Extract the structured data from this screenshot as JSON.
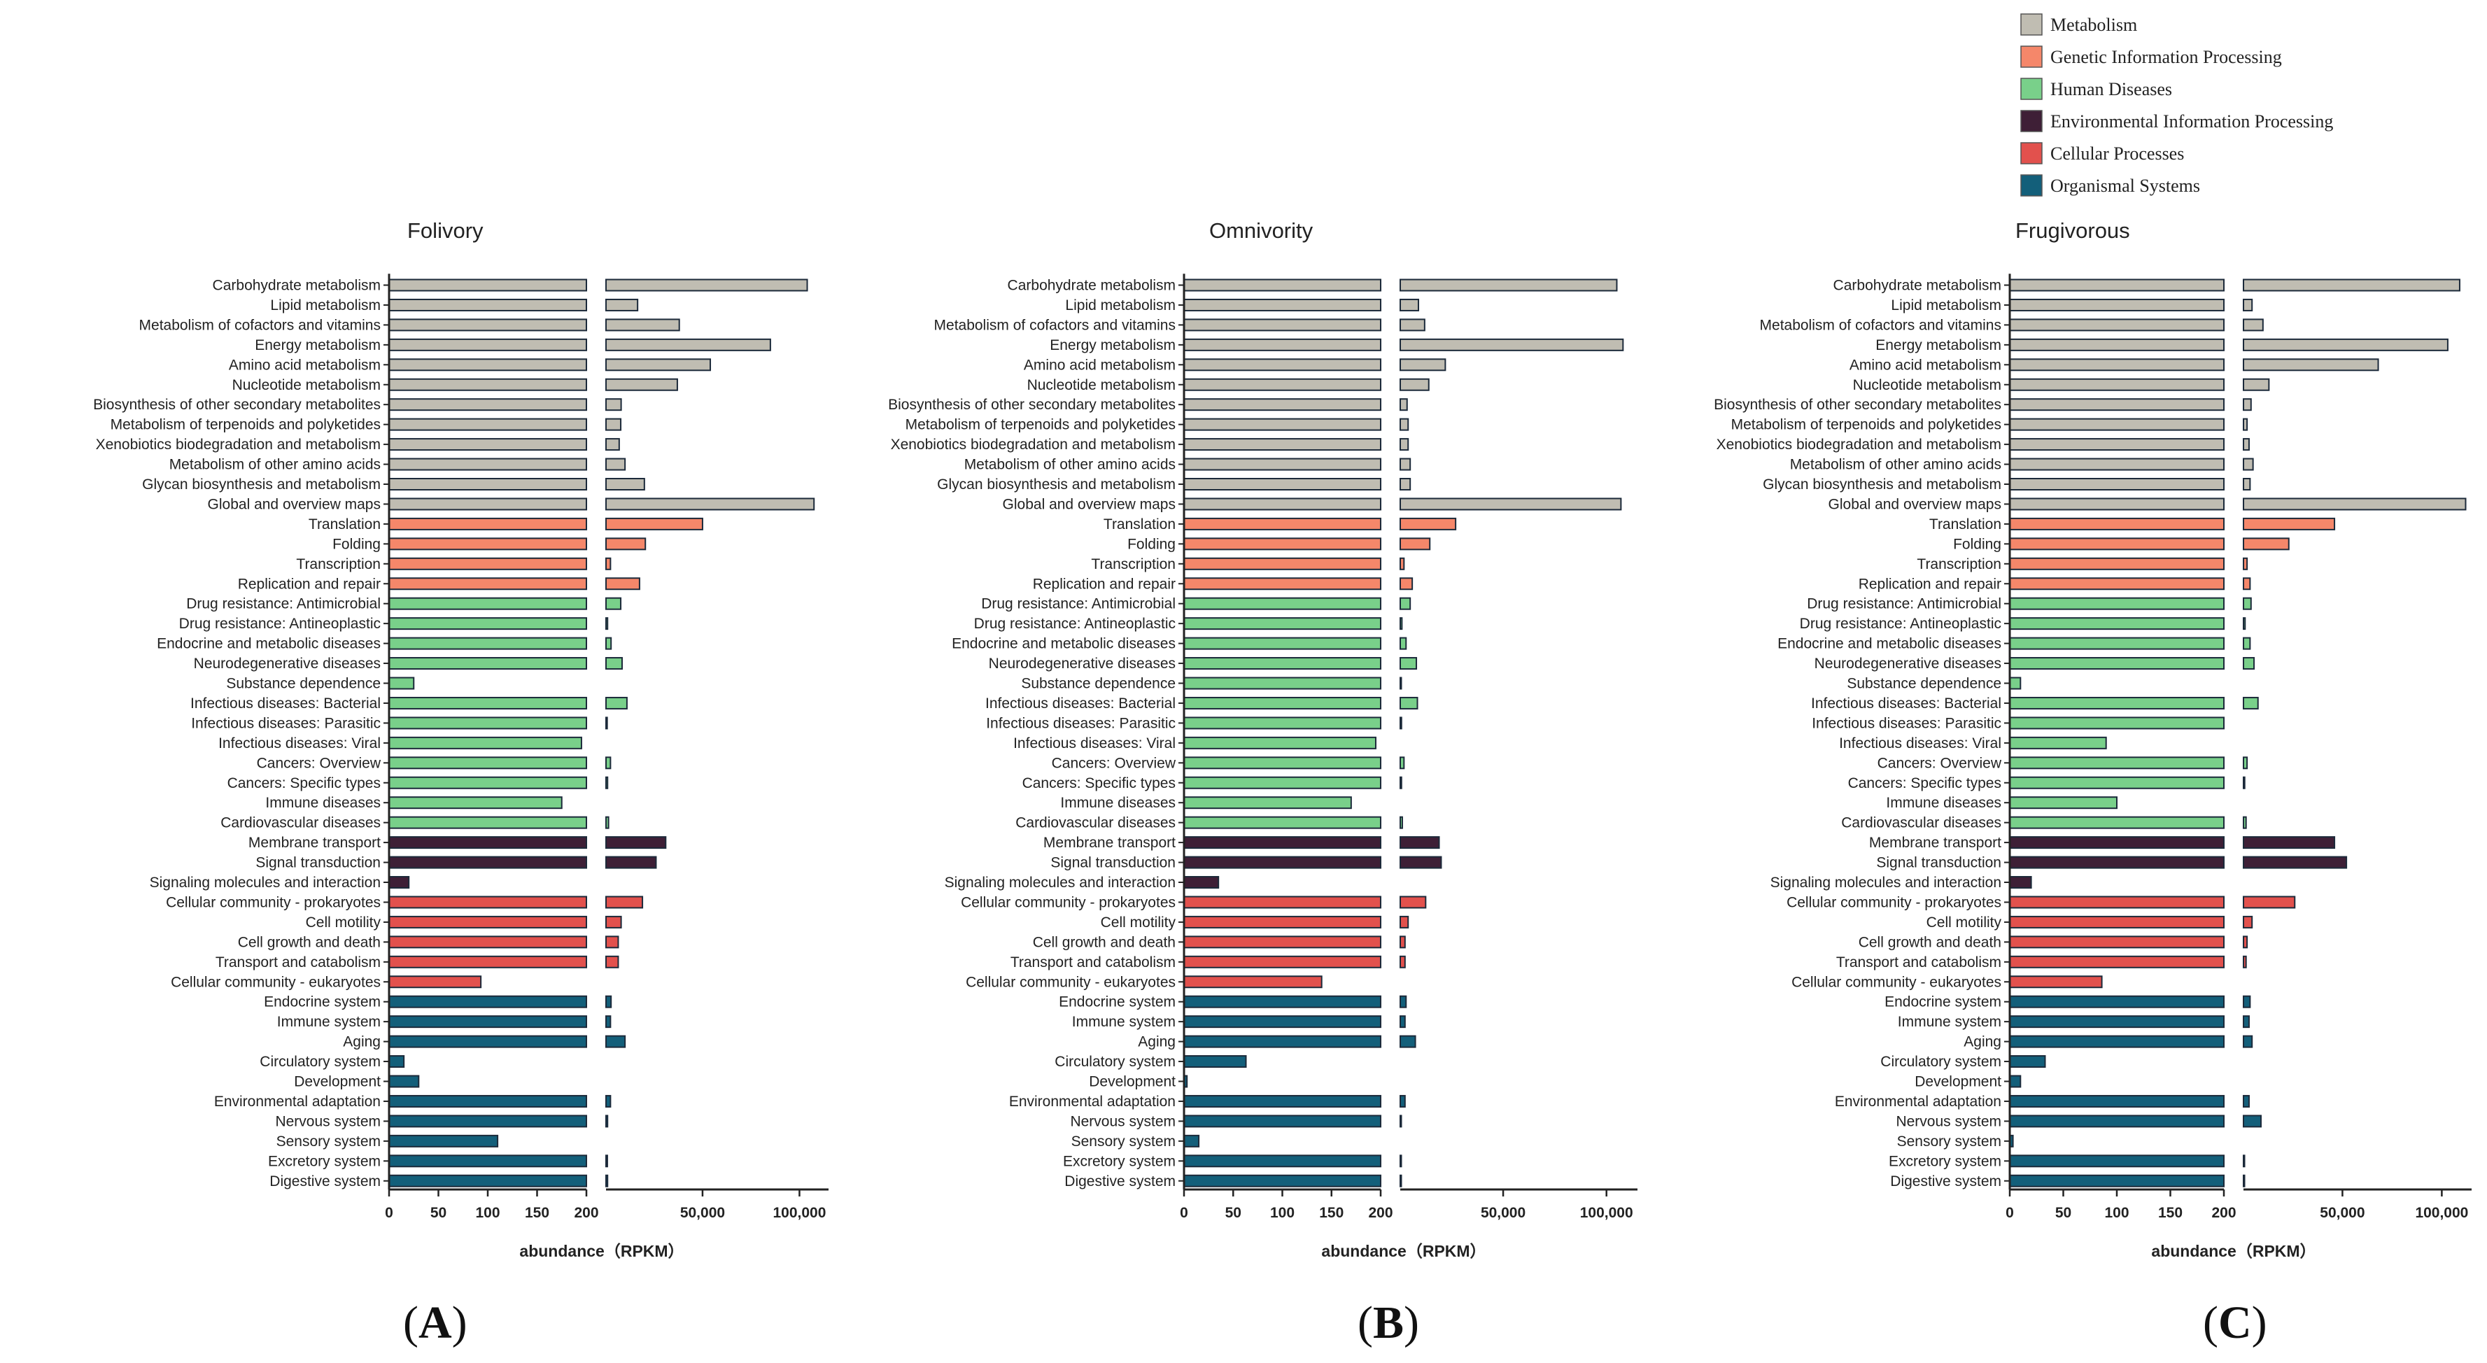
{
  "legend": [
    {
      "name": "Metabolism",
      "color": "#c0bdb2"
    },
    {
      "name": "Genetic Information Processing",
      "color": "#f5876a"
    },
    {
      "name": "Human Diseases",
      "color": "#79d08a"
    },
    {
      "name": "Environmental Information Processing",
      "color": "#3e1f36"
    },
    {
      "name": "Cellular Processes",
      "color": "#e2514d"
    },
    {
      "name": "Organismal Systems",
      "color": "#135f7a"
    }
  ],
  "chart_data": [
    {
      "type": "bar",
      "orientation": "horizontal",
      "title": "Folivory",
      "panel_label": "A",
      "xlabel": "abundance（RPKM）",
      "axis_break": {
        "lower_range": [
          0,
          200
        ],
        "upper_range": [
          200,
          115000
        ]
      },
      "lower_ticks": [
        "0",
        "50",
        "100",
        "150",
        "200"
      ],
      "upper_ticks": [
        "50,000",
        "100,000"
      ],
      "categories": [
        "Carbohydrate metabolism",
        "Lipid metabolism",
        "Metabolism of cofactors and vitamins",
        "Energy metabolism",
        "Amino acid metabolism",
        "Nucleotide metabolism",
        "Biosynthesis of other secondary metabolites",
        "Metabolism of terpenoids and polyketides",
        "Xenobiotics biodegradation and metabolism",
        "Metabolism of other amino acids",
        "Glycan biosynthesis and metabolism",
        "Global and overview maps",
        "Translation",
        "Folding",
        "Transcription",
        "Replication and repair",
        "Drug resistance: Antimicrobial",
        "Drug resistance: Antineoplastic",
        "Endocrine and metabolic diseases",
        "Neurodegenerative diseases",
        "Substance dependence",
        "Infectious diseases: Bacterial",
        "Infectious diseases: Parasitic",
        "Infectious diseases: Viral",
        "Cancers: Overview",
        "Cancers: Specific types",
        "Immune diseases",
        "Cardiovascular diseases",
        "Membrane transport",
        "Signal transduction",
        "Signaling molecules and interaction",
        "Cellular community - prokaryotes",
        "Cell motility",
        "Cell growth and death",
        "Transport and catabolism",
        "Cellular community - eukaryotes",
        "Endocrine system",
        "Immune system",
        "Aging",
        "Circulatory system",
        "Development",
        "Environmental adaptation",
        "Nervous system",
        "Sensory system",
        "Excretory system",
        "Digestive system"
      ],
      "groups": [
        "Metabolism",
        "Metabolism",
        "Metabolism",
        "Metabolism",
        "Metabolism",
        "Metabolism",
        "Metabolism",
        "Metabolism",
        "Metabolism",
        "Metabolism",
        "Metabolism",
        "Metabolism",
        "Genetic Information Processing",
        "Genetic Information Processing",
        "Genetic Information Processing",
        "Genetic Information Processing",
        "Human Diseases",
        "Human Diseases",
        "Human Diseases",
        "Human Diseases",
        "Human Diseases",
        "Human Diseases",
        "Human Diseases",
        "Human Diseases",
        "Human Diseases",
        "Human Diseases",
        "Human Diseases",
        "Human Diseases",
        "Environmental Information Processing",
        "Environmental Information Processing",
        "Environmental Information Processing",
        "Cellular Processes",
        "Cellular Processes",
        "Cellular Processes",
        "Cellular Processes",
        "Cellular Processes",
        "Organismal Systems",
        "Organismal Systems",
        "Organismal Systems",
        "Organismal Systems",
        "Organismal Systems",
        "Organismal Systems",
        "Organismal Systems",
        "Organismal Systems",
        "Organismal Systems",
        "Organismal Systems"
      ],
      "values": [
        104000,
        16500,
        38000,
        85000,
        54000,
        37000,
        8000,
        7800,
        7000,
        10000,
        20000,
        107500,
        50000,
        20500,
        2500,
        17500,
        7800,
        1000,
        2800,
        8500,
        25,
        11000,
        800,
        195,
        2500,
        1000,
        175,
        1500,
        31000,
        26000,
        20,
        19000,
        8000,
        6500,
        6500,
        93,
        2800,
        2500,
        10000,
        15,
        30,
        2500,
        1000,
        110,
        900,
        1000
      ]
    },
    {
      "type": "bar",
      "orientation": "horizontal",
      "title": "Omnivority",
      "panel_label": "B",
      "xlabel": "abundance（RPKM）",
      "axis_break": {
        "lower_range": [
          0,
          200
        ],
        "upper_range": [
          200,
          115000
        ]
      },
      "lower_ticks": [
        "0",
        "50",
        "100",
        "150",
        "200"
      ],
      "upper_ticks": [
        "50,000",
        "100,000"
      ],
      "categories": [
        "Carbohydrate metabolism",
        "Lipid metabolism",
        "Metabolism of cofactors and vitamins",
        "Energy metabolism",
        "Amino acid metabolism",
        "Nucleotide metabolism",
        "Biosynthesis of other secondary metabolites",
        "Metabolism of terpenoids and polyketides",
        "Xenobiotics biodegradation and metabolism",
        "Metabolism of other amino acids",
        "Glycan biosynthesis and metabolism",
        "Global and overview maps",
        "Translation",
        "Folding",
        "Transcription",
        "Replication and repair",
        "Drug resistance: Antimicrobial",
        "Drug resistance: Antineoplastic",
        "Endocrine and metabolic diseases",
        "Neurodegenerative diseases",
        "Substance dependence",
        "Infectious diseases: Bacterial",
        "Infectious diseases: Parasitic",
        "Infectious diseases: Viral",
        "Cancers: Overview",
        "Cancers: Specific types",
        "Immune diseases",
        "Cardiovascular diseases",
        "Membrane transport",
        "Signal transduction",
        "Signaling molecules and interaction",
        "Cellular community - prokaryotes",
        "Cell motility",
        "Cell growth and death",
        "Transport and catabolism",
        "Cellular community - eukaryotes",
        "Endocrine system",
        "Immune system",
        "Aging",
        "Circulatory system",
        "Development",
        "Environmental adaptation",
        "Nervous system",
        "Sensory system",
        "Excretory system",
        "Digestive system"
      ],
      "values": [
        105000,
        9000,
        12000,
        108000,
        22000,
        14000,
        3500,
        4000,
        4000,
        5000,
        5000,
        107000,
        27000,
        14500,
        2000,
        6000,
        5000,
        1000,
        3000,
        8000,
        500,
        8500,
        800,
        195,
        2000,
        800,
        170,
        1200,
        19000,
        20000,
        35,
        12500,
        4000,
        2500,
        2500,
        140,
        3000,
        2500,
        7500,
        63,
        3,
        2500,
        500,
        15,
        500,
        500
      ]
    },
    {
      "type": "bar",
      "orientation": "horizontal",
      "title": "Frugivorous",
      "panel_label": "C",
      "xlabel": "abundance（RPKM）",
      "axis_break": {
        "lower_range": [
          0,
          200
        ],
        "upper_range": [
          200,
          115000
        ]
      },
      "lower_ticks": [
        "0",
        "50",
        "100",
        "150",
        "200"
      ],
      "upper_ticks": [
        "50,000",
        "100,000"
      ],
      "categories": [
        "Carbohydrate metabolism",
        "Lipid metabolism",
        "Metabolism of cofactors and vitamins",
        "Energy metabolism",
        "Amino acid metabolism",
        "Nucleotide metabolism",
        "Biosynthesis of other secondary metabolites",
        "Metabolism of terpenoids and polyketides",
        "Xenobiotics biodegradation and metabolism",
        "Metabolism of other amino acids",
        "Glycan biosynthesis and metabolism",
        "Global and overview maps",
        "Translation",
        "Folding",
        "Transcription",
        "Replication and repair",
        "Drug resistance: Antimicrobial",
        "Drug resistance: Antineoplastic",
        "Endocrine and metabolic diseases",
        "Neurodegenerative diseases",
        "Substance dependence",
        "Infectious diseases: Bacterial",
        "Infectious diseases: Parasitic",
        "Infectious diseases: Viral",
        "Cancers: Overview",
        "Cancers: Specific types",
        "Immune diseases",
        "Cardiovascular diseases",
        "Membrane transport",
        "Signal transduction",
        "Signaling molecules and interaction",
        "Cellular community - prokaryotes",
        "Cell motility",
        "Cell growth and death",
        "Transport and catabolism",
        "Cellular community - eukaryotes",
        "Endocrine system",
        "Immune system",
        "Aging",
        "Circulatory system",
        "Development",
        "Environmental adaptation",
        "Nervous system",
        "Sensory system",
        "Excretory system",
        "Digestive system"
      ],
      "values": [
        109000,
        4500,
        10000,
        103000,
        68000,
        13000,
        4000,
        2000,
        3000,
        5000,
        3500,
        112000,
        46000,
        23000,
        2000,
        3500,
        4000,
        1000,
        3500,
        5500,
        10,
        7500,
        200,
        90,
        2000,
        800,
        100,
        1500,
        46000,
        52000,
        20,
        26000,
        4500,
        2000,
        1500,
        86,
        3500,
        3000,
        4500,
        33,
        10,
        3000,
        9000,
        3,
        600,
        500
      ]
    }
  ]
}
